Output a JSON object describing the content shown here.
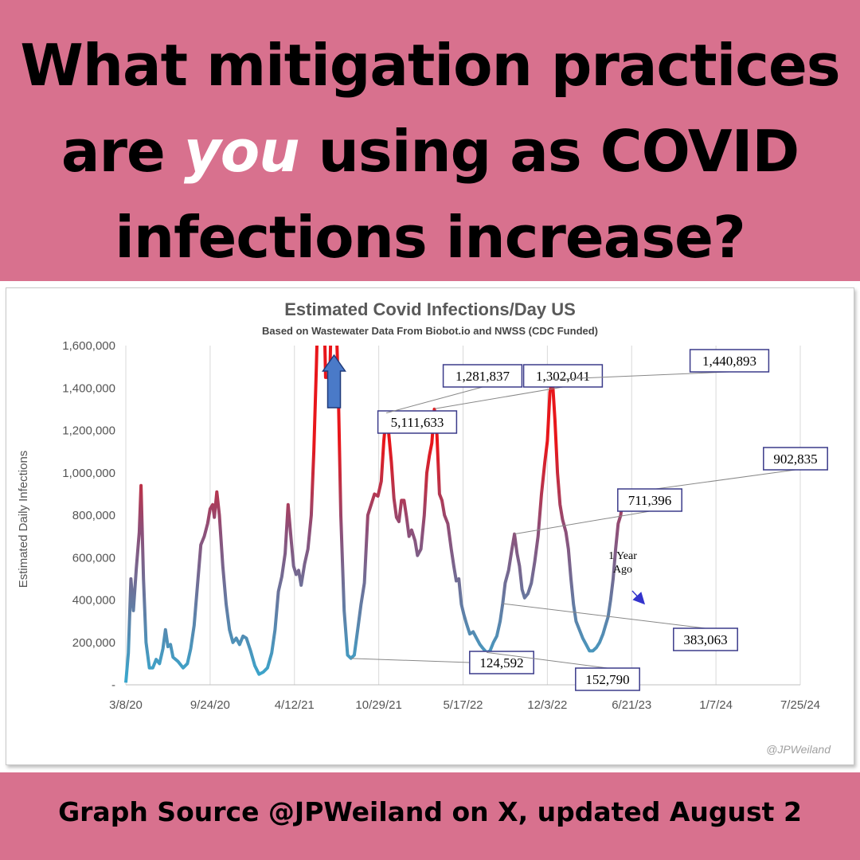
{
  "headline": {
    "line1": "What mitigation practices",
    "line2_pre": "are ",
    "line2_em": "you",
    "line2_post": " using as COVID",
    "line3": "infections increase?"
  },
  "footer": "Graph Source @JPWeiland on X, updated August 2",
  "chart_data": {
    "type": "line",
    "title": "Estimated Covid Infections/Day US",
    "subtitle": "Based on Wastewater Data From Biobot.io and NWSS (CDC Funded)",
    "ylabel": "Estimated Daily Infections",
    "xlabel": "",
    "ylim": [
      0,
      1600000
    ],
    "yticks": [
      0,
      200000,
      400000,
      600000,
      800000,
      1000000,
      1200000,
      1400000,
      1600000
    ],
    "ytick_labels": [
      "-",
      "200,000",
      "400,000",
      "600,000",
      "800,000",
      "1,000,000",
      "1,200,000",
      "1,400,000",
      "1,600,000"
    ],
    "xtick_labels": [
      "3/8/20",
      "9/24/20",
      "4/12/21",
      "10/29/21",
      "5/17/22",
      "12/3/22",
      "6/21/23",
      "1/7/24",
      "7/25/24"
    ],
    "xrange_days": [
      0,
      1600
    ],
    "grid": "vertical",
    "color_low": "#3aa6cc",
    "color_high": "#e8161b",
    "series": [
      {
        "points": [
          [
            0,
            10000
          ],
          [
            6,
            150000
          ],
          [
            12,
            500000
          ],
          [
            18,
            350000
          ],
          [
            25,
            550000
          ],
          [
            32,
            720000
          ],
          [
            36,
            940000
          ],
          [
            42,
            500000
          ],
          [
            48,
            200000
          ],
          [
            56,
            80000
          ],
          [
            64,
            80000
          ],
          [
            72,
            120000
          ],
          [
            80,
            100000
          ],
          [
            88,
            170000
          ],
          [
            94,
            260000
          ],
          [
            100,
            180000
          ],
          [
            106,
            190000
          ],
          [
            112,
            130000
          ],
          [
            124,
            110000
          ],
          [
            136,
            80000
          ],
          [
            146,
            100000
          ],
          [
            154,
            170000
          ],
          [
            162,
            280000
          ],
          [
            170,
            470000
          ],
          [
            178,
            660000
          ],
          [
            186,
            700000
          ],
          [
            194,
            760000
          ],
          [
            200,
            830000
          ],
          [
            206,
            850000
          ],
          [
            210,
            790000
          ],
          [
            216,
            910000
          ],
          [
            222,
            800000
          ],
          [
            230,
            560000
          ],
          [
            238,
            380000
          ],
          [
            246,
            260000
          ],
          [
            254,
            200000
          ],
          [
            262,
            220000
          ],
          [
            270,
            190000
          ],
          [
            278,
            230000
          ],
          [
            286,
            220000
          ],
          [
            296,
            160000
          ],
          [
            306,
            90000
          ],
          [
            316,
            50000
          ],
          [
            326,
            60000
          ],
          [
            336,
            80000
          ],
          [
            346,
            150000
          ],
          [
            354,
            260000
          ],
          [
            362,
            440000
          ],
          [
            370,
            510000
          ],
          [
            378,
            620000
          ],
          [
            385,
            850000
          ],
          [
            392,
            690000
          ],
          [
            398,
            560000
          ],
          [
            404,
            520000
          ],
          [
            410,
            540000
          ],
          [
            416,
            470000
          ],
          [
            424,
            570000
          ],
          [
            432,
            640000
          ],
          [
            440,
            800000
          ],
          [
            446,
            1100000
          ],
          [
            452,
            1500000
          ],
          [
            456,
            1800000
          ],
          [
            470,
            1800000
          ],
          [
            474,
            1450000
          ],
          [
            484,
            1450000
          ],
          [
            488,
            1800000
          ],
          [
            498,
            1800000
          ],
          [
            504,
            1400000
          ],
          [
            510,
            800000
          ],
          [
            518,
            350000
          ],
          [
            526,
            140000
          ],
          [
            534,
            125000
          ],
          [
            542,
            140000
          ],
          [
            550,
            260000
          ],
          [
            558,
            380000
          ],
          [
            566,
            480000
          ],
          [
            574,
            800000
          ],
          [
            582,
            850000
          ],
          [
            590,
            900000
          ],
          [
            598,
            890000
          ],
          [
            606,
            960000
          ],
          [
            612,
            1150000
          ],
          [
            618,
            1282000
          ],
          [
            624,
            1180000
          ],
          [
            630,
            1050000
          ],
          [
            636,
            880000
          ],
          [
            642,
            790000
          ],
          [
            648,
            770000
          ],
          [
            654,
            870000
          ],
          [
            660,
            870000
          ],
          [
            666,
            790000
          ],
          [
            672,
            700000
          ],
          [
            678,
            730000
          ],
          [
            686,
            680000
          ],
          [
            692,
            610000
          ],
          [
            700,
            640000
          ],
          [
            708,
            800000
          ],
          [
            714,
            1000000
          ],
          [
            720,
            1080000
          ],
          [
            726,
            1140000
          ],
          [
            732,
            1300000
          ],
          [
            738,
            1180000
          ],
          [
            744,
            900000
          ],
          [
            750,
            870000
          ],
          [
            756,
            800000
          ],
          [
            764,
            760000
          ],
          [
            772,
            640000
          ],
          [
            778,
            560000
          ],
          [
            784,
            490000
          ],
          [
            790,
            500000
          ],
          [
            796,
            380000
          ],
          [
            802,
            330000
          ],
          [
            808,
            290000
          ],
          [
            816,
            240000
          ],
          [
            824,
            250000
          ],
          [
            832,
            220000
          ],
          [
            840,
            190000
          ],
          [
            848,
            170000
          ],
          [
            856,
            153000
          ],
          [
            864,
            160000
          ],
          [
            872,
            200000
          ],
          [
            880,
            230000
          ],
          [
            888,
            300000
          ],
          [
            894,
            383000
          ],
          [
            900,
            480000
          ],
          [
            908,
            540000
          ],
          [
            916,
            640000
          ],
          [
            922,
            711000
          ],
          [
            928,
            620000
          ],
          [
            934,
            560000
          ],
          [
            940,
            450000
          ],
          [
            946,
            410000
          ],
          [
            954,
            430000
          ],
          [
            962,
            480000
          ],
          [
            970,
            580000
          ],
          [
            978,
            700000
          ],
          [
            986,
            900000
          ],
          [
            994,
            1050000
          ],
          [
            1000,
            1150000
          ],
          [
            1006,
            1380000
          ],
          [
            1012,
            1441000
          ],
          [
            1018,
            1250000
          ],
          [
            1024,
            1000000
          ],
          [
            1030,
            850000
          ],
          [
            1036,
            780000
          ],
          [
            1044,
            720000
          ],
          [
            1050,
            640000
          ],
          [
            1056,
            500000
          ],
          [
            1062,
            380000
          ],
          [
            1068,
            300000
          ],
          [
            1076,
            260000
          ],
          [
            1084,
            220000
          ],
          [
            1092,
            190000
          ],
          [
            1100,
            160000
          ],
          [
            1108,
            160000
          ],
          [
            1116,
            175000
          ],
          [
            1124,
            200000
          ],
          [
            1132,
            240000
          ],
          [
            1138,
            280000
          ],
          [
            1144,
            320000
          ],
          [
            1150,
            400000
          ],
          [
            1156,
            500000
          ],
          [
            1162,
            640000
          ],
          [
            1168,
            760000
          ],
          [
            1174,
            800000
          ],
          [
            1180,
            903000
          ]
        ]
      }
    ],
    "annotations": [
      {
        "text": "5,111,633",
        "at": [
          494,
          1800000
        ],
        "arrow": "up"
      },
      {
        "text": "1,281,837",
        "at": [
          618,
          1282000
        ]
      },
      {
        "text": "1,302,041",
        "at": [
          732,
          1302041
        ]
      },
      {
        "text": "1,440,893",
        "at": [
          1012,
          1440893
        ]
      },
      {
        "text": "902,835",
        "at": [
          1180,
          902835
        ]
      },
      {
        "text": "711,396",
        "at": [
          922,
          711396
        ]
      },
      {
        "text": "383,063",
        "at": [
          894,
          383063
        ]
      },
      {
        "text": "124,592",
        "at": [
          534,
          124592
        ]
      },
      {
        "text": "152,790",
        "at": [
          856,
          152790
        ]
      },
      {
        "text": "1 Year Ago",
        "at": [
          894,
          383063
        ]
      }
    ],
    "watermark": "@JPWeiland"
  }
}
